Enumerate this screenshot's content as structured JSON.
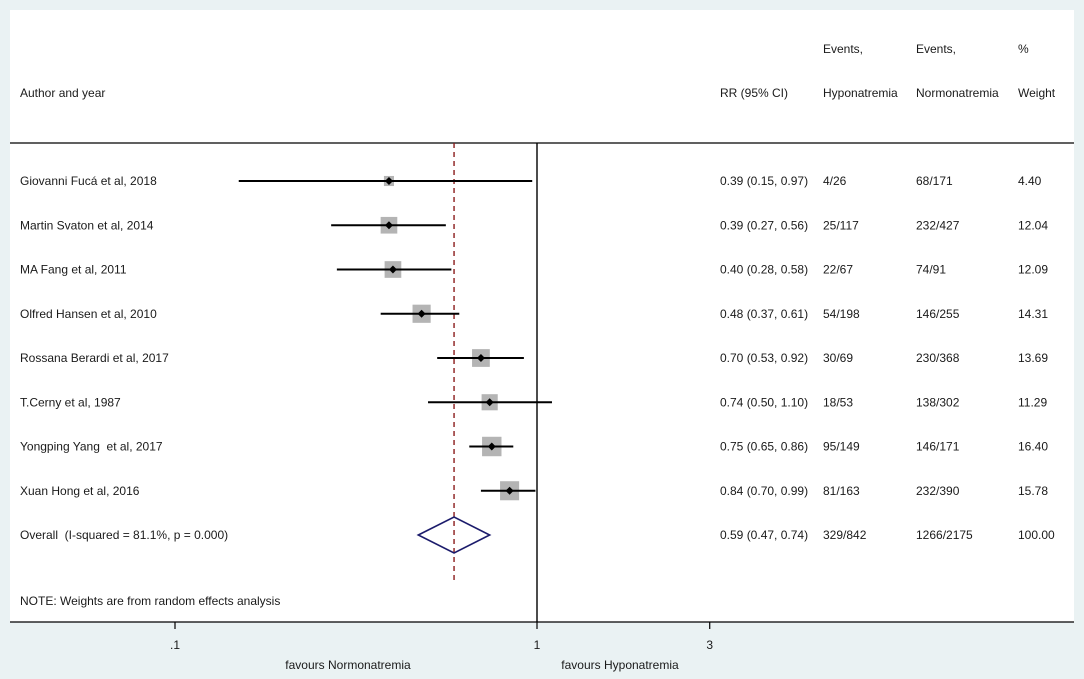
{
  "colors": {
    "frame": "#eaf2f3",
    "plot_bg": "#ffffff",
    "box": "#b4b4b4",
    "ci_line": "#000000",
    "point": "#000000",
    "null_line": "#000000",
    "overall_line": "#8b1c1c",
    "diamond": "#1c1c6c",
    "rule": "#000000"
  },
  "chart_data": {
    "type": "scatter",
    "x_scale": "log",
    "grid": false,
    "null_line": 1,
    "x_ticks": [
      {
        "value": 0.1,
        "label": ".1"
      },
      {
        "value": 1,
        "label": "1"
      },
      {
        "value": 3,
        "label": "3"
      }
    ],
    "columns": {
      "label": "Author and year",
      "rr_ci": "RR (95% CI)",
      "events_hypo": [
        "Events,",
        "Hyponatremia"
      ],
      "events_normo": [
        "Events,",
        "Normonatremia"
      ],
      "weight": [
        "%",
        "Weight"
      ]
    },
    "studies": [
      {
        "label": "Giovanni Fucá et al, 2018",
        "rr": 0.39,
        "lower": 0.15,
        "upper": 0.97,
        "rr_ci": "0.39 (0.15, 0.97)",
        "events_hypo": "4/26",
        "events_normo": "68/171",
        "weight": "4.40"
      },
      {
        "label": "Martin Svaton et al, 2014",
        "rr": 0.39,
        "lower": 0.27,
        "upper": 0.56,
        "rr_ci": "0.39 (0.27, 0.56)",
        "events_hypo": "25/117",
        "events_normo": "232/427",
        "weight": "12.04"
      },
      {
        "label": "MA Fang et al, 2011",
        "rr": 0.4,
        "lower": 0.28,
        "upper": 0.58,
        "rr_ci": "0.40 (0.28, 0.58)",
        "events_hypo": "22/67",
        "events_normo": "74/91",
        "weight": "12.09"
      },
      {
        "label": "Olfred Hansen et al, 2010",
        "rr": 0.48,
        "lower": 0.37,
        "upper": 0.61,
        "rr_ci": "0.48 (0.37, 0.61)",
        "events_hypo": "54/198",
        "events_normo": "146/255",
        "weight": "14.31"
      },
      {
        "label": "Rossana Berardi et al, 2017",
        "rr": 0.7,
        "lower": 0.53,
        "upper": 0.92,
        "rr_ci": "0.70 (0.53, 0.92)",
        "events_hypo": "30/69",
        "events_normo": "230/368",
        "weight": "13.69"
      },
      {
        "label": "T.Cerny et al, 1987",
        "rr": 0.74,
        "lower": 0.5,
        "upper": 1.1,
        "rr_ci": "0.74 (0.50, 1.10)",
        "events_hypo": "18/53",
        "events_normo": "138/302",
        "weight": "11.29"
      },
      {
        "label": "Yongping Yang  et al, 2017",
        "rr": 0.75,
        "lower": 0.65,
        "upper": 0.86,
        "rr_ci": "0.75 (0.65, 0.86)",
        "events_hypo": "95/149",
        "events_normo": "146/171",
        "weight": "16.40"
      },
      {
        "label": "Xuan Hong et al, 2016",
        "rr": 0.84,
        "lower": 0.7,
        "upper": 0.99,
        "rr_ci": "0.84 (0.70, 0.99)",
        "events_hypo": "81/163",
        "events_normo": "232/390",
        "weight": "15.78"
      }
    ],
    "overall": {
      "label": "Overall  (I-squared = 81.1%, p = 0.000)",
      "rr": 0.59,
      "lower": 0.47,
      "upper": 0.74,
      "rr_ci": "0.59 (0.47, 0.74)",
      "events_hypo": "329/842",
      "events_normo": "1266/2175",
      "weight": "100.00"
    },
    "note": "NOTE: Weights are from random effects analysis",
    "x_annotations": {
      "left": "favours Normonatremia",
      "right": "favours Hyponatremia"
    }
  }
}
